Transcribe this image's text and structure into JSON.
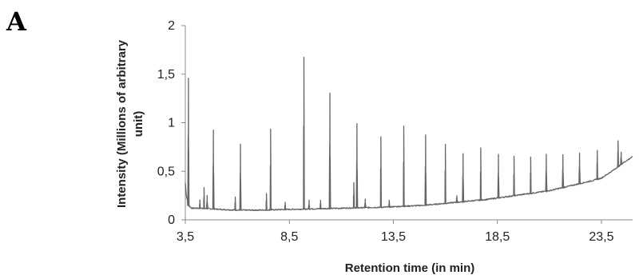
{
  "panel_label": "A",
  "chart_data": {
    "type": "line",
    "xlabel": "Retention time (in min)",
    "ylabel_line1": "Intensity (Millions of arbitrary",
    "ylabel_line2": "unit)",
    "xlim": [
      3.5,
      25.0
    ],
    "ylim": [
      0,
      2
    ],
    "x_ticks": [
      {
        "value": 3.5,
        "label": "3,5"
      },
      {
        "value": 8.5,
        "label": "8,5"
      },
      {
        "value": 13.5,
        "label": "13,5"
      },
      {
        "value": 18.5,
        "label": "18,5"
      },
      {
        "value": 23.5,
        "label": "23,5"
      }
    ],
    "y_ticks": [
      {
        "value": 0,
        "label": "0"
      },
      {
        "value": 0.5,
        "label": "0,5"
      },
      {
        "value": 1,
        "label": "1"
      },
      {
        "value": 1.5,
        "label": "1,5"
      },
      {
        "value": 2,
        "label": "2"
      }
    ],
    "line_color": "#666666",
    "grid": false,
    "baseline": [
      [
        3.5,
        0.38
      ],
      [
        3.55,
        0.25
      ],
      [
        3.65,
        0.15
      ],
      [
        3.8,
        0.12
      ],
      [
        4.2,
        0.12
      ],
      [
        5.0,
        0.11
      ],
      [
        6.0,
        0.1
      ],
      [
        7.0,
        0.1
      ],
      [
        8.0,
        0.105
      ],
      [
        9.0,
        0.11
      ],
      [
        10.0,
        0.115
      ],
      [
        11.0,
        0.12
      ],
      [
        12.0,
        0.125
      ],
      [
        13.0,
        0.13
      ],
      [
        14.0,
        0.14
      ],
      [
        15.0,
        0.15
      ],
      [
        16.0,
        0.17
      ],
      [
        17.0,
        0.19
      ],
      [
        18.0,
        0.21
      ],
      [
        19.0,
        0.24
      ],
      [
        20.0,
        0.27
      ],
      [
        21.0,
        0.3
      ],
      [
        22.0,
        0.35
      ],
      [
        23.0,
        0.4
      ],
      [
        23.5,
        0.43
      ],
      [
        24.0,
        0.5
      ],
      [
        24.5,
        0.58
      ],
      [
        25.0,
        0.65
      ]
    ],
    "peaks": [
      {
        "x": 3.65,
        "y": 1.46
      },
      {
        "x": 4.2,
        "y": 0.2
      },
      {
        "x": 4.4,
        "y": 0.33
      },
      {
        "x": 4.55,
        "y": 0.25
      },
      {
        "x": 4.85,
        "y": 0.93
      },
      {
        "x": 5.9,
        "y": 0.24
      },
      {
        "x": 6.15,
        "y": 0.78
      },
      {
        "x": 7.4,
        "y": 0.27
      },
      {
        "x": 7.6,
        "y": 0.93
      },
      {
        "x": 8.3,
        "y": 0.18
      },
      {
        "x": 9.2,
        "y": 1.67
      },
      {
        "x": 9.45,
        "y": 0.2
      },
      {
        "x": 10.0,
        "y": 0.2
      },
      {
        "x": 10.45,
        "y": 1.3
      },
      {
        "x": 11.6,
        "y": 0.38
      },
      {
        "x": 11.75,
        "y": 0.99
      },
      {
        "x": 12.15,
        "y": 0.21
      },
      {
        "x": 12.9,
        "y": 0.85
      },
      {
        "x": 13.3,
        "y": 0.2
      },
      {
        "x": 14.0,
        "y": 0.97
      },
      {
        "x": 15.05,
        "y": 0.87
      },
      {
        "x": 16.0,
        "y": 0.78
      },
      {
        "x": 16.55,
        "y": 0.25
      },
      {
        "x": 16.85,
        "y": 0.68
      },
      {
        "x": 17.7,
        "y": 0.74
      },
      {
        "x": 18.55,
        "y": 0.67
      },
      {
        "x": 19.3,
        "y": 0.65
      },
      {
        "x": 20.1,
        "y": 0.65
      },
      {
        "x": 20.85,
        "y": 0.68
      },
      {
        "x": 21.65,
        "y": 0.67
      },
      {
        "x": 22.45,
        "y": 0.69
      },
      {
        "x": 23.3,
        "y": 0.72
      },
      {
        "x": 24.3,
        "y": 0.82
      },
      {
        "x": 24.45,
        "y": 0.7
      }
    ]
  }
}
